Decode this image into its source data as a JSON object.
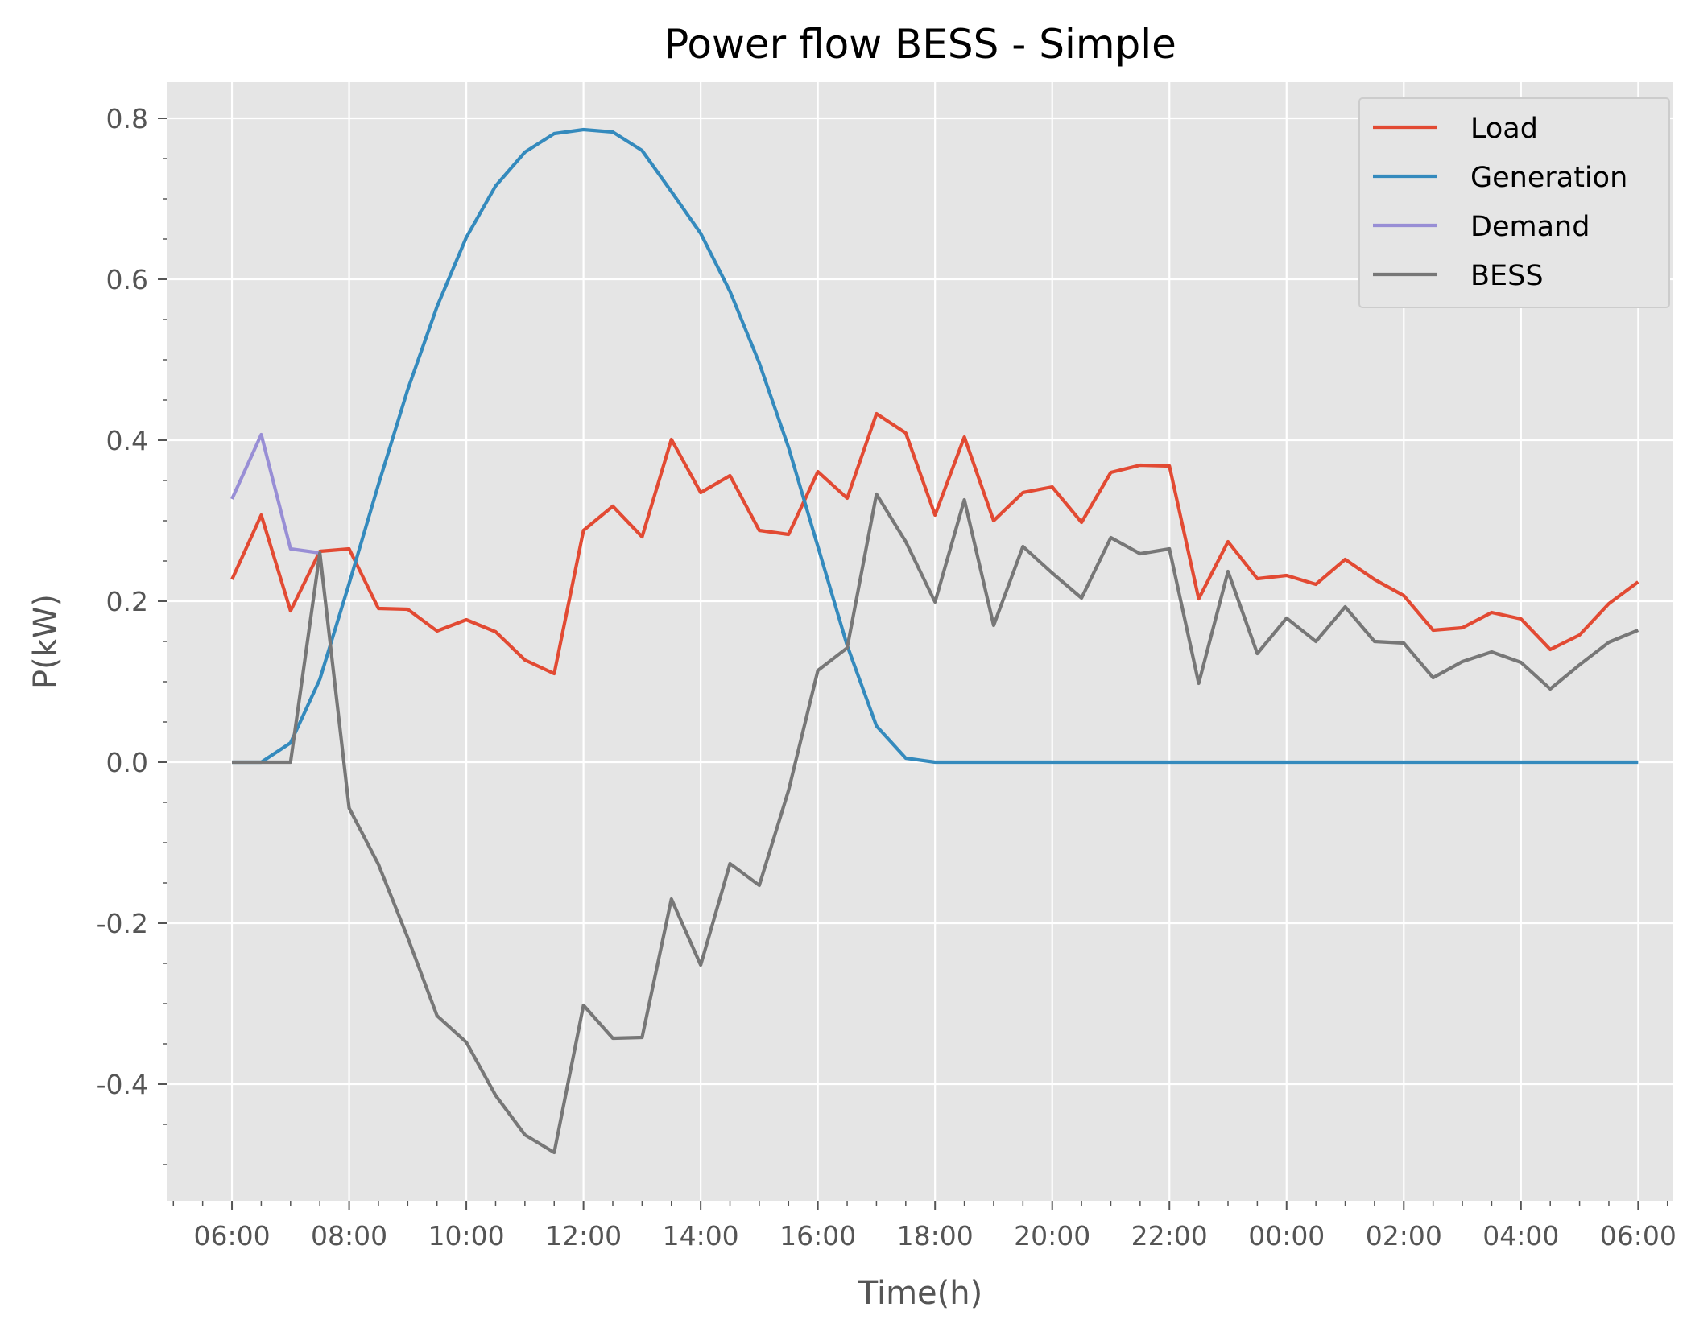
{
  "chart_data": {
    "type": "line",
    "title": "Power flow BESS - Simple",
    "xlabel": "Time(h)",
    "ylabel": "P(kW)",
    "ylim": [
      -0.545,
      0.845
    ],
    "x_ticks": [
      "06:00",
      "08:00",
      "10:00",
      "12:00",
      "14:00",
      "16:00",
      "18:00",
      "20:00",
      "22:00",
      "00:00",
      "02:00",
      "04:00",
      "06:00"
    ],
    "y_ticks": [
      {
        "value": 0.8,
        "label": "0.8"
      },
      {
        "value": 0.6,
        "label": "0.6"
      },
      {
        "value": 0.4,
        "label": "0.4"
      },
      {
        "value": 0.2,
        "label": "0.2"
      },
      {
        "value": 0.0,
        "label": "0.0"
      },
      {
        "value": -0.2,
        "label": "-0.2"
      },
      {
        "value": -0.4,
        "label": "-0.4"
      }
    ],
    "grid": true,
    "legend_position": "top-right",
    "x_start": "06:00",
    "x_step_minutes": 30,
    "series": [
      {
        "name": "Load",
        "color": "#E24A33",
        "values": [
          0.227,
          0.307,
          0.188,
          0.262,
          0.265,
          0.191,
          0.19,
          0.163,
          0.177,
          0.162,
          0.127,
          0.11,
          0.288,
          0.318,
          0.28,
          0.401,
          0.335,
          0.356,
          0.288,
          0.283,
          0.361,
          0.328,
          0.433,
          0.409,
          0.307,
          0.404,
          0.3,
          0.335,
          0.342,
          0.298,
          0.36,
          0.369,
          0.368,
          0.203,
          0.274,
          0.228,
          0.232,
          0.221,
          0.252,
          0.227,
          0.207,
          0.164,
          0.167,
          0.186,
          0.178,
          0.14,
          0.158,
          0.197,
          0.224
        ]
      },
      {
        "name": "Generation",
        "color": "#348ABD",
        "values": [
          0.0,
          0.0,
          0.024,
          0.103,
          0.222,
          0.345,
          0.463,
          0.566,
          0.652,
          0.716,
          0.758,
          0.781,
          0.786,
          0.783,
          0.76,
          0.709,
          0.657,
          0.585,
          0.496,
          0.391,
          0.268,
          0.145,
          0.045,
          0.005,
          0.0,
          0.0,
          0.0,
          0.0,
          0.0,
          0.0,
          0.0,
          0.0,
          0.0,
          0.0,
          0.0,
          0.0,
          0.0,
          0.0,
          0.0,
          0.0,
          0.0,
          0.0,
          0.0,
          0.0,
          0.0,
          0.0,
          0.0,
          0.0,
          0.0
        ]
      },
      {
        "name": "Demand",
        "color": "#988ED5",
        "values": [
          0.327,
          0.407,
          0.265,
          0.26,
          null,
          null,
          null,
          null,
          null,
          null,
          null,
          null,
          null,
          null,
          null,
          null,
          null,
          null,
          null,
          null,
          null,
          null,
          null,
          null,
          null,
          null,
          null,
          null,
          null,
          null,
          null,
          null,
          null,
          null,
          null,
          null,
          null,
          null,
          null,
          null,
          null,
          null,
          null,
          null,
          null,
          null,
          null,
          null,
          null
        ]
      },
      {
        "name": "BESS",
        "color": "#777777",
        "values": [
          0.0,
          0.0,
          0.0,
          0.26,
          -0.057,
          -0.127,
          -0.218,
          -0.315,
          -0.348,
          -0.414,
          -0.463,
          -0.485,
          -0.302,
          -0.343,
          -0.342,
          -0.17,
          -0.252,
          -0.126,
          -0.153,
          -0.035,
          0.114,
          0.142,
          0.333,
          0.274,
          0.199,
          0.326,
          0.17,
          0.268,
          0.235,
          0.204,
          0.279,
          0.259,
          0.265,
          0.098,
          0.237,
          0.135,
          0.179,
          0.15,
          0.193,
          0.15,
          0.148,
          0.105,
          0.125,
          0.137,
          0.124,
          0.091,
          0.121,
          0.149,
          0.164
        ]
      }
    ]
  }
}
